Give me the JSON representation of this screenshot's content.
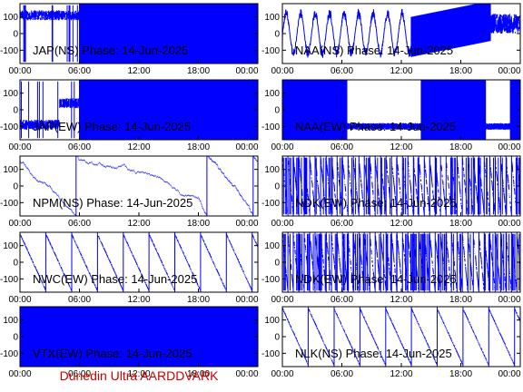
{
  "footer": "Dunedin Ultra AARDDVARK",
  "colors": {
    "trace": "#0000ff",
    "footer": "#cc0000",
    "axes": "#000000"
  },
  "chart_data": [
    {
      "type": "line",
      "title": "JAP(NS) Phase: 14-Jun-2025",
      "ylim": [
        -180,
        180
      ],
      "yticks": [
        "100",
        "0",
        "-100"
      ],
      "xticks": [
        "00:00",
        "06:00",
        "12:00",
        "18:00",
        "00:00"
      ],
      "ylabels_side": "left",
      "pattern": "noise_then_solid",
      "series": [
        {
          "x": [
            0,
            1,
            3,
            5,
            6,
            24
          ],
          "y": [
            100,
            110,
            95,
            90,
            140,
            0
          ]
        }
      ]
    },
    {
      "type": "line",
      "title": "NAA(NS) Phase: 14-Jun-2025",
      "ylim": [
        -180,
        180
      ],
      "yticks": [
        "100",
        "0",
        "-100"
      ],
      "xticks": [
        "00:00",
        "06:00",
        "12:00",
        "18:00",
        "00:00"
      ],
      "ylabels_side": "right",
      "pattern": "sweeps_then_band",
      "series": [
        {
          "x": [
            0,
            2,
            4,
            6,
            8,
            10,
            13,
            15,
            17,
            19,
            21,
            22,
            24
          ],
          "y": [
            -80,
            150,
            -150,
            120,
            -90,
            -60,
            -40,
            0,
            40,
            60,
            80,
            100,
            90
          ]
        }
      ]
    },
    {
      "type": "line",
      "title": "JAP(EW) Phase: 14-Jun-2025",
      "ylim": [
        -180,
        180
      ],
      "yticks": [
        "100",
        "0",
        "-100"
      ],
      "xticks": [
        "00:00",
        "06:00",
        "12:00",
        "18:00",
        "00:00"
      ],
      "ylabels_side": "left",
      "pattern": "noise_then_solid",
      "series": [
        {
          "x": [
            0,
            2,
            4,
            5,
            6,
            24
          ],
          "y": [
            -100,
            -80,
            -150,
            0,
            120,
            0
          ]
        }
      ]
    },
    {
      "type": "line",
      "title": "NAA(EW) Phase: 14-Jun-2025",
      "ylim": [
        -180,
        180
      ],
      "yticks": [
        "100",
        "0",
        "-100"
      ],
      "xticks": [
        "00:00",
        "06:00",
        "12:00",
        "18:00",
        "00:00"
      ],
      "ylabels_side": "right",
      "pattern": "solid_with_gaps",
      "series": [
        {
          "x": [
            0,
            6,
            8,
            10,
            12,
            14,
            16,
            18,
            20,
            22,
            24
          ],
          "y": [
            0,
            -100,
            -110,
            -120,
            -100,
            -90,
            -80,
            -90,
            -70,
            -60,
            -50
          ]
        }
      ]
    },
    {
      "type": "line",
      "title": "NPM(NS) Phase: 14-Jun-2025",
      "ylim": [
        -180,
        180
      ],
      "yticks": [
        "100",
        "0",
        "-100"
      ],
      "xticks": [
        "00:00",
        "06:00",
        "12:00",
        "18:00",
        "00:00"
      ],
      "ylabels_side": "left",
      "pattern": "drift_wraps",
      "series": [
        {
          "x": [
            0,
            3,
            6,
            9,
            12,
            15,
            18,
            21,
            24
          ],
          "y": [
            150,
            -100,
            130,
            120,
            130,
            100,
            60,
            140,
            -150
          ]
        }
      ]
    },
    {
      "type": "line",
      "title": "NDK(EW) Phase: 14-Jun-2025",
      "ylim": [
        -180,
        180
      ],
      "yticks": [
        "100",
        "0",
        "-100"
      ],
      "xticks": [
        "00:00",
        "06:00",
        "12:00",
        "18:00",
        "00:00"
      ],
      "ylabels_side": "right",
      "pattern": "dense_wraps",
      "series": [
        {
          "x": [
            0,
            6,
            12,
            18,
            24
          ],
          "y": [
            150,
            -150,
            150,
            -150,
            150
          ]
        }
      ]
    },
    {
      "type": "line",
      "title": "NWC(EW) Phase: 14-Jun-2025",
      "ylim": [
        -180,
        180
      ],
      "yticks": [
        "100",
        "0",
        "-100"
      ],
      "xticks": [
        "00:00",
        "06:00",
        "12:00",
        "18:00",
        "00:00"
      ],
      "ylabels_side": "left",
      "pattern": "sawtooth",
      "series": [
        {
          "x": [
            0,
            3,
            6,
            9,
            12,
            15,
            18,
            21,
            24
          ],
          "y": [
            150,
            -150,
            150,
            -150,
            150,
            -150,
            150,
            40,
            -150
          ]
        }
      ]
    },
    {
      "type": "line",
      "title": "NDK(EW) Phase: 14-Jun-2025",
      "ylim": [
        -180,
        180
      ],
      "yticks": [
        "100",
        "0",
        "-100"
      ],
      "xticks": [
        "00:00",
        "06:00",
        "12:00",
        "18:00",
        "00:00"
      ],
      "ylabels_side": "right",
      "pattern": "dense_wraps",
      "series": [
        {
          "x": [
            0,
            6,
            12,
            18,
            24
          ],
          "y": [
            150,
            -150,
            150,
            -150,
            150
          ]
        }
      ]
    },
    {
      "type": "line",
      "title": "VTX(EW) Phase: 14-Jun-2025",
      "ylim": [
        -180,
        180
      ],
      "yticks": [
        "100",
        "0",
        "-100"
      ],
      "xticks": [
        "00:00",
        "06:00",
        "12:00",
        "18:00",
        "00:00"
      ],
      "ylabels_side": "left",
      "pattern": "full_noise",
      "series": [
        {
          "x": [
            0,
            24
          ],
          "y": [
            0,
            0
          ]
        }
      ]
    },
    {
      "type": "line",
      "title": "NLK(NS) Phase: 14-Jun-2025",
      "ylim": [
        -180,
        180
      ],
      "yticks": [
        "100",
        "0",
        "-100"
      ],
      "xticks": [
        "00:00",
        "06:00",
        "12:00",
        "18:00",
        "00:00"
      ],
      "ylabels_side": "right",
      "pattern": "sawtooth",
      "series": [
        {
          "x": [
            0,
            3,
            6,
            9,
            12,
            15,
            18,
            21,
            24
          ],
          "y": [
            150,
            -150,
            150,
            -150,
            150,
            -150,
            130,
            0,
            -150
          ]
        }
      ]
    }
  ]
}
